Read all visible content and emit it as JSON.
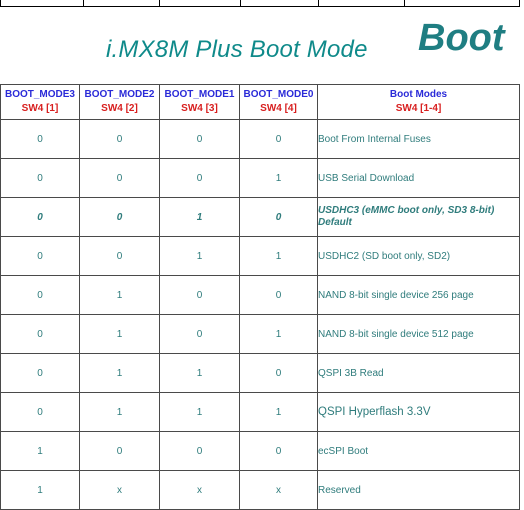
{
  "header": {
    "title": "i.MX8M Plus Boot Mode",
    "big_word": "Boot"
  },
  "table": {
    "columns": [
      {
        "name": "BOOT_MODE3",
        "switch": "SW4 [1]"
      },
      {
        "name": "BOOT_MODE2",
        "switch": "SW4 [2]"
      },
      {
        "name": "BOOT_MODE1",
        "switch": "SW4 [3]"
      },
      {
        "name": "BOOT_MODE0",
        "switch": "SW4 [4]"
      },
      {
        "name": "Boot Modes",
        "switch": "SW4 [1-4]"
      }
    ],
    "rows": [
      {
        "m3": "0",
        "m2": "0",
        "m1": "0",
        "m0": "0",
        "mode": "Boot From Internal Fuses",
        "mode2": ""
      },
      {
        "m3": "0",
        "m2": "0",
        "m1": "0",
        "m0": "1",
        "mode": "USB Serial Download",
        "mode2": ""
      },
      {
        "m3": "0",
        "m2": "0",
        "m1": "1",
        "m0": "0",
        "mode": "USDHC3 (eMMC boot only, SD3 8-bit)",
        "mode2": "Default"
      },
      {
        "m3": "0",
        "m2": "0",
        "m1": "1",
        "m0": "1",
        "mode": "USDHC2 (SD boot only, SD2)",
        "mode2": ""
      },
      {
        "m3": "0",
        "m2": "1",
        "m1": "0",
        "m0": "0",
        "mode": "NAND 8-bit single device 256 page",
        "mode2": ""
      },
      {
        "m3": "0",
        "m2": "1",
        "m1": "0",
        "m0": "1",
        "mode": "NAND 8-bit single device 512 page",
        "mode2": ""
      },
      {
        "m3": "0",
        "m2": "1",
        "m1": "1",
        "m0": "0",
        "mode": "QSPI 3B Read",
        "mode2": ""
      },
      {
        "m3": "0",
        "m2": "1",
        "m1": "1",
        "m0": "1",
        "mode": "QSPI Hyperflash  3.3V",
        "mode2": ""
      },
      {
        "m3": "1",
        "m2": "0",
        "m1": "0",
        "m0": "0",
        "mode": "ecSPI Boot",
        "mode2": ""
      },
      {
        "m3": "1",
        "m2": "x",
        "m1": "x",
        "m0": "x",
        "mode": "Reserved",
        "mode2": ""
      }
    ]
  }
}
